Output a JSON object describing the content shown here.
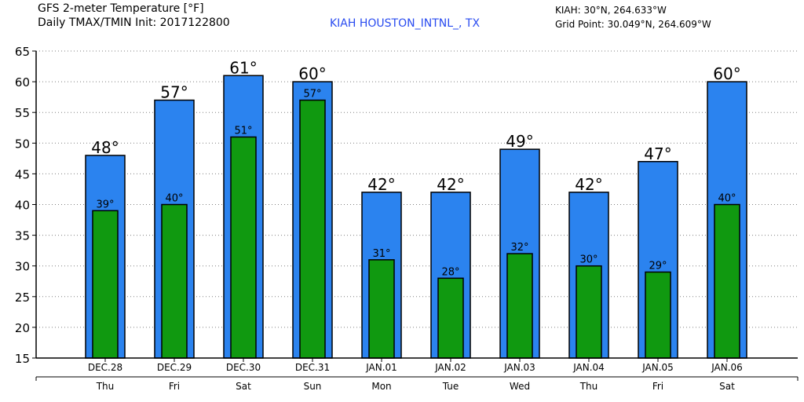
{
  "header": {
    "title_line1": "GFS 2-meter Temperature [°F]",
    "title_line2": "Daily TMAX/TMIN Init: 2017122800",
    "station": "KIAH HOUSTON_INTNL_, TX",
    "location_line": "KIAH: 30°N, 264.633°W",
    "gridpoint_line": "Grid Point: 30.049°N, 264.609°W"
  },
  "colors": {
    "tmax": "#2b83ef",
    "tmin": "#109910",
    "station_text": "#2a4cf0"
  },
  "chart_data": {
    "type": "bar",
    "categories": [
      "DEC.28",
      "DEC.29",
      "DEC.30",
      "DEC.31",
      "JAN.01",
      "JAN.02",
      "JAN.03",
      "JAN.04",
      "JAN.05",
      "JAN.06"
    ],
    "weekdays": [
      "Thu",
      "Fri",
      "Sat",
      "Sun",
      "Mon",
      "Tue",
      "Wed",
      "Thu",
      "Fri",
      "Sat"
    ],
    "series": [
      {
        "name": "TMAX",
        "values": [
          48,
          57,
          61,
          60,
          42,
          42,
          49,
          42,
          47,
          60
        ],
        "labels": [
          "48°",
          "57°",
          "61°",
          "60°",
          "42°",
          "42°",
          "49°",
          "42°",
          "47°",
          "60°"
        ]
      },
      {
        "name": "TMIN",
        "values": [
          39,
          40,
          51,
          57,
          31,
          28,
          32,
          30,
          29,
          40
        ],
        "labels": [
          "39°",
          "40°",
          "51°",
          "57°",
          "31°",
          "28°",
          "32°",
          "30°",
          "29°",
          "40°"
        ]
      }
    ],
    "ylim": [
      15,
      65
    ],
    "yticks": [
      15,
      20,
      25,
      30,
      35,
      40,
      45,
      50,
      55,
      60,
      65
    ],
    "grid": true
  }
}
